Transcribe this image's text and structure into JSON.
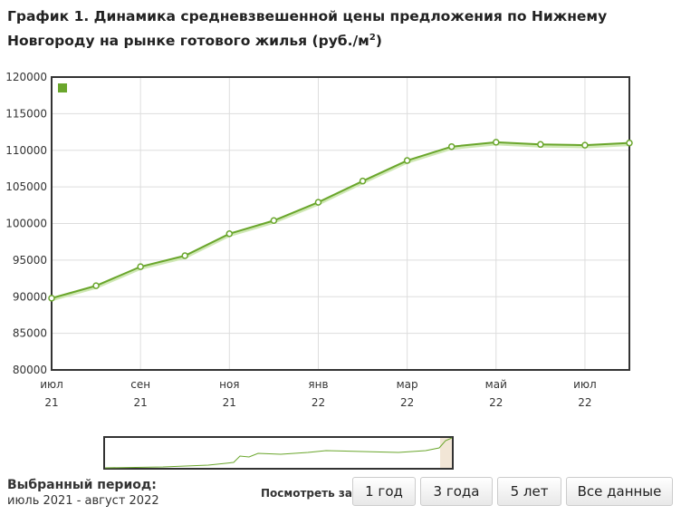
{
  "chart_data": {
    "type": "line",
    "title": "График 1. Динамика средневзвешенной цены предложения по Нижнему Новгороду на рынке готового жилья (руб./м",
    "title_sup": "2",
    "title_end": ")",
    "categories": [
      [
        "июл",
        "21"
      ],
      null,
      [
        "сен",
        "21"
      ],
      null,
      [
        "ноя",
        "21"
      ],
      null,
      [
        "янв",
        "22"
      ],
      null,
      [
        "мар",
        "22"
      ],
      null,
      [
        "май",
        "22"
      ],
      null,
      [
        "июл",
        "22"
      ],
      null
    ],
    "series": [
      {
        "color": "#6aa62c",
        "values": [
          89800,
          91500,
          94100,
          95600,
          98600,
          100400,
          102900,
          105800,
          108600,
          110500,
          111100,
          110800,
          110700,
          111000
        ]
      }
    ],
    "ylim": [
      80000,
      120000
    ],
    "yticks": [
      80000,
      85000,
      90000,
      95000,
      100000,
      105000,
      110000,
      115000,
      120000
    ],
    "grid": true
  },
  "controls": {
    "period_label": "Выбранный период:",
    "period_value": "июль 2021 - август 2022",
    "view_label": "Посмотреть за:",
    "buttons": [
      "1 год",
      "3 года",
      "5 лет",
      "Все данные"
    ]
  }
}
